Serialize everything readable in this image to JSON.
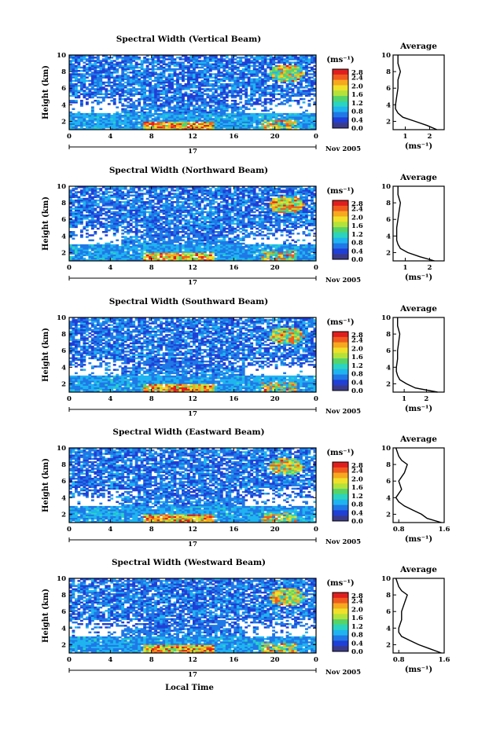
{
  "shared": {
    "xlabel": "Local Time",
    "date_day": "17",
    "date_month": "Nov 2005",
    "ylabel": "Height (km)",
    "colorbar_unit": "(ms⁻¹)",
    "avg_title": "Average",
    "avg_xlabel": "(ms⁻¹)"
  },
  "chart_data": [
    {
      "type": "heatmap",
      "title": "Spectral Width (Vertical Beam)",
      "x_range": [
        0,
        24
      ],
      "x_ticks": [
        "0",
        "4",
        "8",
        "12",
        "16",
        "20",
        "0"
      ],
      "y_range": [
        1,
        10
      ],
      "y_ticks": [
        "2",
        "4",
        "6",
        "8",
        "10"
      ],
      "colorbar": {
        "range": [
          0,
          2.8
        ],
        "ticks": [
          "2.8",
          "2.4",
          "2.0",
          "1.6",
          "1.2",
          "0.8",
          "0.4",
          "0.0"
        ]
      },
      "average_profile": {
        "x_ticks": [
          "1",
          "2"
        ],
        "x_range": [
          0.5,
          2.6
        ],
        "height": [
          1.0,
          1.5,
          2.0,
          2.5,
          3.0,
          3.5,
          4.0,
          5.0,
          6.0,
          7.0,
          8.0,
          8.5,
          9.0,
          10.0
        ],
        "value": [
          2.3,
          1.9,
          1.4,
          0.9,
          0.7,
          0.6,
          0.6,
          0.65,
          0.7,
          0.7,
          0.8,
          0.75,
          0.7,
          0.7
        ]
      }
    },
    {
      "type": "heatmap",
      "title": "Spectral Width (Northward Beam)",
      "x_range": [
        0,
        24
      ],
      "x_ticks": [
        "0",
        "4",
        "8",
        "12",
        "16",
        "20",
        "0"
      ],
      "y_range": [
        1,
        10
      ],
      "y_ticks": [
        "2",
        "4",
        "6",
        "8",
        "10"
      ],
      "colorbar": {
        "range": [
          0,
          2.8
        ],
        "ticks": [
          "2.8",
          "2.4",
          "2.0",
          "1.6",
          "1.2",
          "0.8",
          "0.4",
          "0.0"
        ]
      },
      "average_profile": {
        "x_ticks": [
          "1",
          "2"
        ],
        "x_range": [
          0.5,
          2.6
        ],
        "height": [
          1.0,
          1.5,
          2.0,
          2.5,
          3.0,
          3.5,
          4.0,
          5.0,
          6.0,
          7.0,
          8.0,
          8.5,
          9.0,
          10.0
        ],
        "value": [
          2.2,
          1.6,
          1.1,
          0.8,
          0.7,
          0.65,
          0.65,
          0.65,
          0.7,
          0.75,
          0.8,
          0.75,
          0.7,
          0.7
        ]
      }
    },
    {
      "type": "heatmap",
      "title": "Spectral Width (Southward Beam)",
      "x_range": [
        0,
        24
      ],
      "x_ticks": [
        "0",
        "4",
        "8",
        "12",
        "16",
        "20",
        "0"
      ],
      "y_range": [
        1,
        10
      ],
      "y_ticks": [
        "2",
        "4",
        "6",
        "8",
        "10"
      ],
      "colorbar": {
        "range": [
          0,
          2.8
        ],
        "ticks": [
          "2.8",
          "2.4",
          "2.0",
          "1.6",
          "1.2",
          "0.8",
          "0.4",
          "0.0"
        ]
      },
      "average_profile": {
        "x_ticks": [
          "1",
          "2"
        ],
        "x_range": [
          0.5,
          2.8
        ],
        "height": [
          1.0,
          1.5,
          2.0,
          2.5,
          3.0,
          3.5,
          4.0,
          5.0,
          6.0,
          7.0,
          8.0,
          8.5,
          9.0,
          10.0
        ],
        "value": [
          2.5,
          1.5,
          1.1,
          0.8,
          0.7,
          0.65,
          0.65,
          0.7,
          0.7,
          0.75,
          0.8,
          0.75,
          0.7,
          0.7
        ]
      }
    },
    {
      "type": "heatmap",
      "title": "Spectral Width (Eastward Beam)",
      "x_range": [
        0,
        24
      ],
      "x_ticks": [
        "0",
        "4",
        "8",
        "12",
        "16",
        "20",
        "0"
      ],
      "y_range": [
        1,
        10
      ],
      "y_ticks": [
        "2",
        "4",
        "6",
        "8",
        "10"
      ],
      "colorbar": {
        "range": [
          0,
          2.8
        ],
        "ticks": [
          "2.8",
          "2.4",
          "2.0",
          "1.6",
          "1.2",
          "0.8",
          "0.4",
          "0.0"
        ]
      },
      "average_profile": {
        "x_ticks": [
          "0.8",
          "1.6"
        ],
        "x_range": [
          0.7,
          1.6
        ],
        "height": [
          1.0,
          1.5,
          2.0,
          2.5,
          3.0,
          3.5,
          4.0,
          5.0,
          6.0,
          7.0,
          8.0,
          8.5,
          9.0,
          10.0
        ],
        "value": [
          1.55,
          1.3,
          1.2,
          1.05,
          0.9,
          0.8,
          0.75,
          0.85,
          0.8,
          0.9,
          0.95,
          0.85,
          0.8,
          0.75
        ]
      }
    },
    {
      "type": "heatmap",
      "title": "Spectral Width (Westward Beam)",
      "x_range": [
        0,
        24
      ],
      "x_ticks": [
        "0",
        "4",
        "8",
        "12",
        "16",
        "20",
        "0"
      ],
      "y_range": [
        1,
        10
      ],
      "y_ticks": [
        "2",
        "4",
        "6",
        "8",
        "10"
      ],
      "colorbar": {
        "range": [
          0,
          2.8
        ],
        "ticks": [
          "2.8",
          "2.4",
          "2.0",
          "1.6",
          "1.2",
          "0.8",
          "0.4",
          "0.0"
        ]
      },
      "average_profile": {
        "x_ticks": [
          "0.8",
          "1.6"
        ],
        "x_range": [
          0.7,
          1.6
        ],
        "height": [
          1.0,
          1.5,
          2.0,
          2.5,
          3.0,
          3.5,
          4.0,
          5.0,
          6.0,
          7.0,
          8.0,
          8.5,
          9.0,
          10.0
        ],
        "value": [
          1.55,
          1.35,
          1.15,
          1.0,
          0.85,
          0.8,
          0.8,
          0.85,
          0.85,
          0.9,
          0.95,
          0.85,
          0.8,
          0.75
        ]
      }
    }
  ]
}
